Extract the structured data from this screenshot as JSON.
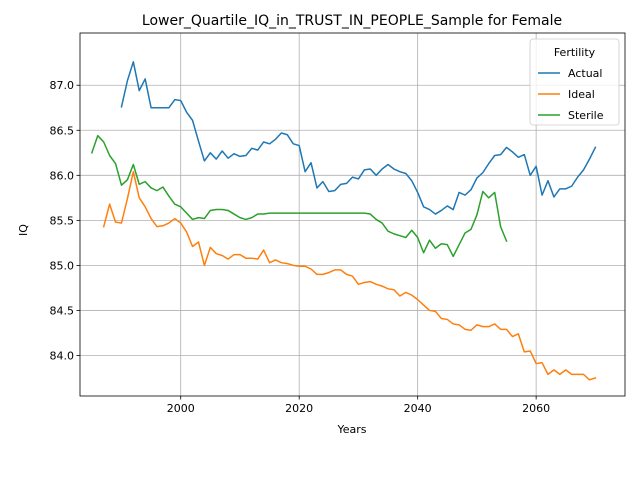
{
  "chart_data": {
    "type": "line",
    "title": "Lower_Quartile_IQ_in_TRUST_IN_PEOPLE_Sample for Female",
    "xlabel": "Years",
    "ylabel": "IQ",
    "xlim": [
      1983,
      2075
    ],
    "ylim": [
      83.55,
      87.58
    ],
    "xticks": [
      2000,
      2020,
      2040,
      2060
    ],
    "yticks": [
      84.0,
      84.5,
      85.0,
      85.5,
      86.0,
      86.5,
      87.0
    ],
    "ytick_labels": [
      "84.0",
      "84.5",
      "85.0",
      "85.5",
      "86.0",
      "86.5",
      "87.0"
    ],
    "grid": true,
    "legend": {
      "title": "Fertility",
      "placement": "upper right"
    },
    "series": [
      {
        "name": "Actual",
        "color": "#1f77b4",
        "x": [
          1990,
          1991,
          1992,
          1993,
          1994,
          1995,
          1996,
          1997,
          1998,
          1999,
          2000,
          2001,
          2002,
          2003,
          2004,
          2005,
          2006,
          2007,
          2008,
          2009,
          2010,
          2011,
          2012,
          2013,
          2014,
          2015,
          2016,
          2017,
          2018,
          2019,
          2020,
          2021,
          2022,
          2023,
          2024,
          2025,
          2026,
          2027,
          2028,
          2029,
          2030,
          2031,
          2032,
          2033,
          2034,
          2035,
          2036,
          2037,
          2038,
          2039,
          2040,
          2041,
          2042,
          2043,
          2044,
          2045,
          2046,
          2047,
          2048,
          2049,
          2050,
          2051,
          2052,
          2053,
          2054,
          2055,
          2056,
          2057,
          2058,
          2059,
          2060,
          2061,
          2062,
          2063,
          2064,
          2065,
          2066,
          2067,
          2068,
          2069,
          2070
        ],
        "values": [
          86.76,
          87.05,
          87.26,
          86.94,
          87.07,
          86.75,
          86.75,
          86.75,
          86.75,
          86.84,
          86.83,
          86.7,
          86.61,
          86.38,
          86.16,
          86.25,
          86.18,
          86.27,
          86.19,
          86.24,
          86.21,
          86.22,
          86.3,
          86.28,
          86.37,
          86.35,
          86.4,
          86.47,
          86.45,
          86.35,
          86.33,
          86.04,
          86.14,
          85.86,
          85.93,
          85.82,
          85.83,
          85.9,
          85.91,
          85.98,
          85.96,
          86.06,
          86.07,
          86.0,
          86.07,
          86.12,
          86.07,
          86.04,
          86.02,
          85.94,
          85.81,
          85.65,
          85.62,
          85.57,
          85.61,
          85.66,
          85.62,
          85.81,
          85.78,
          85.84,
          85.97,
          86.03,
          86.13,
          86.22,
          86.23,
          86.31,
          86.26,
          86.2,
          86.23,
          86.0,
          86.1,
          85.78,
          85.94,
          85.76,
          85.85,
          85.85,
          85.88,
          85.98,
          86.06,
          86.18,
          86.31
        ]
      },
      {
        "name": "Ideal",
        "color": "#ff7f0e",
        "x": [
          1987,
          1988,
          1989,
          1990,
          1991,
          1992,
          1993,
          1994,
          1995,
          1996,
          1997,
          1998,
          1999,
          2000,
          2001,
          2002,
          2003,
          2004,
          2005,
          2006,
          2007,
          2008,
          2009,
          2010,
          2011,
          2012,
          2013,
          2014,
          2015,
          2016,
          2017,
          2018,
          2019,
          2020,
          2021,
          2022,
          2023,
          2024,
          2025,
          2026,
          2027,
          2028,
          2029,
          2030,
          2031,
          2032,
          2033,
          2034,
          2035,
          2036,
          2037,
          2038,
          2039,
          2040,
          2041,
          2042,
          2043,
          2044,
          2045,
          2046,
          2047,
          2048,
          2049,
          2050,
          2051,
          2052,
          2053,
          2054,
          2055,
          2056,
          2057,
          2058,
          2059,
          2060,
          2061,
          2062,
          2063,
          2064,
          2065,
          2066,
          2067,
          2068,
          2069,
          2070
        ],
        "values": [
          85.43,
          85.68,
          85.48,
          85.47,
          85.74,
          86.04,
          85.75,
          85.65,
          85.52,
          85.43,
          85.44,
          85.47,
          85.52,
          85.47,
          85.37,
          85.21,
          85.26,
          85.0,
          85.2,
          85.13,
          85.11,
          85.07,
          85.12,
          85.12,
          85.08,
          85.08,
          85.07,
          85.17,
          85.03,
          85.06,
          85.03,
          85.02,
          85.0,
          84.99,
          84.99,
          84.96,
          84.9,
          84.9,
          84.92,
          84.95,
          84.95,
          84.9,
          84.88,
          84.79,
          84.81,
          84.82,
          84.79,
          84.77,
          84.74,
          84.73,
          84.66,
          84.7,
          84.67,
          84.62,
          84.56,
          84.5,
          84.49,
          84.41,
          84.4,
          84.35,
          84.34,
          84.29,
          84.28,
          84.34,
          84.32,
          84.32,
          84.35,
          84.29,
          84.29,
          84.21,
          84.24,
          84.04,
          84.05,
          83.91,
          83.92,
          83.79,
          83.84,
          83.79,
          83.84,
          83.79,
          83.79,
          83.79,
          83.73,
          83.75
        ]
      },
      {
        "name": "Sterile",
        "color": "#2ca02c",
        "x": [
          1985,
          1986,
          1987,
          1988,
          1989,
          1990,
          1991,
          1992,
          1993,
          1994,
          1995,
          1996,
          1997,
          1998,
          1999,
          2000,
          2001,
          2002,
          2003,
          2004,
          2005,
          2006,
          2007,
          2008,
          2009,
          2010,
          2011,
          2012,
          2013,
          2014,
          2015,
          2016,
          2017,
          2018,
          2019,
          2020,
          2021,
          2022,
          2023,
          2024,
          2025,
          2026,
          2027,
          2028,
          2029,
          2030,
          2031,
          2032,
          2033,
          2034,
          2035,
          2036,
          2037,
          2038,
          2039,
          2040,
          2041,
          2042,
          2043,
          2044,
          2045,
          2046,
          2047,
          2048,
          2049,
          2050,
          2051,
          2052,
          2053,
          2054,
          2055
        ],
        "values": [
          86.25,
          86.44,
          86.37,
          86.22,
          86.13,
          85.89,
          85.95,
          86.12,
          85.9,
          85.93,
          85.86,
          85.83,
          85.87,
          85.77,
          85.68,
          85.65,
          85.58,
          85.51,
          85.53,
          85.52,
          85.61,
          85.62,
          85.62,
          85.61,
          85.57,
          85.53,
          85.51,
          85.53,
          85.57,
          85.57,
          85.58,
          85.58,
          85.58,
          85.58,
          85.58,
          85.58,
          85.58,
          85.58,
          85.58,
          85.58,
          85.58,
          85.58,
          85.58,
          85.58,
          85.58,
          85.58,
          85.58,
          85.57,
          85.51,
          85.47,
          85.38,
          85.35,
          85.33,
          85.31,
          85.39,
          85.31,
          85.14,
          85.28,
          85.19,
          85.24,
          85.23,
          85.1,
          85.23,
          85.36,
          85.4,
          85.56,
          85.82,
          85.75,
          85.81,
          85.43,
          85.27
        ]
      }
    ]
  }
}
